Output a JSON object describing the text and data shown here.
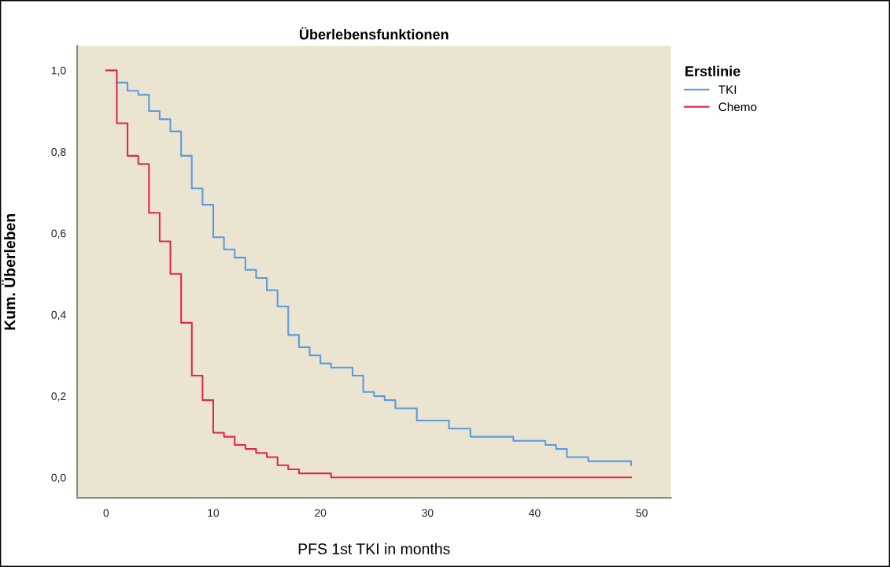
{
  "chart_data": {
    "type": "step",
    "title": "Überlebensfunktionen",
    "xlabel": "PFS 1st TKI in months",
    "ylabel": "Kum. Überleben",
    "legend_title": "Erstlinie",
    "legend": "top right",
    "grid": false,
    "xlim": [
      -2.7,
      52.7
    ],
    "xticks": [
      0,
      10,
      20,
      30,
      40,
      50
    ],
    "ylim": [
      -0.05,
      1.06
    ],
    "yticks": [
      {
        "value": 0,
        "label": "0,0"
      },
      {
        "value": 0.2,
        "label": "0,2"
      },
      {
        "value": 0.4,
        "label": "0,4"
      },
      {
        "value": 0.6,
        "label": "0,6"
      },
      {
        "value": 0.8,
        "label": "0,8"
      },
      {
        "value": 1.0,
        "label": "1,0"
      }
    ],
    "series": [
      {
        "name": "TKI",
        "color": "#5b9ae0",
        "x": [
          1,
          2,
          3,
          4,
          5,
          6,
          7,
          8,
          9,
          10,
          11,
          12,
          13,
          14,
          15,
          16,
          17,
          18,
          19,
          20,
          21,
          23,
          24,
          25,
          26,
          27,
          29,
          32,
          34,
          38,
          41,
          42,
          43,
          45,
          49
        ],
        "values": [
          0.97,
          0.95,
          0.94,
          0.9,
          0.88,
          0.85,
          0.79,
          0.71,
          0.67,
          0.59,
          0.56,
          0.54,
          0.51,
          0.49,
          0.46,
          0.42,
          0.35,
          0.32,
          0.3,
          0.28,
          0.27,
          0.25,
          0.21,
          0.2,
          0.19,
          0.17,
          0.14,
          0.12,
          0.1,
          0.09,
          0.08,
          0.07,
          0.05,
          0.04,
          0.03
        ]
      },
      {
        "name": "Chemo",
        "color": "#e0284f",
        "x": [
          0,
          1,
          2,
          3,
          4,
          5,
          6,
          7,
          8,
          9,
          10,
          11,
          12,
          13,
          14,
          15,
          16,
          17,
          18,
          19,
          20,
          21,
          24,
          49
        ],
        "values": [
          1.0,
          0.87,
          0.79,
          0.77,
          0.65,
          0.58,
          0.5,
          0.38,
          0.25,
          0.19,
          0.11,
          0.1,
          0.08,
          0.07,
          0.06,
          0.05,
          0.03,
          0.02,
          0.01,
          0.01,
          0.01,
          0.0,
          0.0,
          0.0
        ]
      }
    ]
  }
}
